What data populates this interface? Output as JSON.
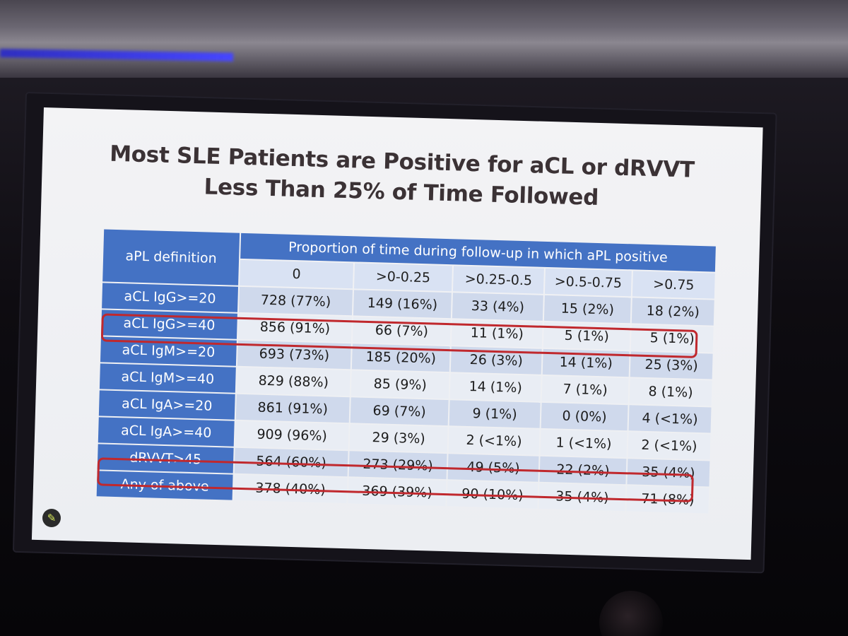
{
  "slide": {
    "title_line1": "Most SLE Patients are Positive for aCL or dRVVT",
    "title_line2": "Less Than 25% of Time Followed"
  },
  "table": {
    "row_header": "aPL definition",
    "group_header": "Proportion of time during follow-up in which aPL positive",
    "bins": [
      "0",
      ">0-0.25",
      ">0.25-0.5",
      ">0.5-0.75",
      ">0.75"
    ],
    "rows": [
      {
        "label": "aCL IgG>=20",
        "cells": [
          "728 (77%)",
          "149 (16%)",
          "33 (4%)",
          "15 (2%)",
          "18 (2%)"
        ]
      },
      {
        "label": "aCL IgG>=40",
        "cells": [
          "856 (91%)",
          "66 (7%)",
          "11 (1%)",
          "5 (1%)",
          "5 (1%)"
        ]
      },
      {
        "label": "aCL IgM>=20",
        "cells": [
          "693 (73%)",
          "185 (20%)",
          "26 (3%)",
          "14 (1%)",
          "25 (3%)"
        ]
      },
      {
        "label": "aCL IgM>=40",
        "cells": [
          "829 (88%)",
          "85 (9%)",
          "14 (1%)",
          "7 (1%)",
          "8 (1%)"
        ]
      },
      {
        "label": "aCL IgA>=20",
        "cells": [
          "861 (91%)",
          "69 (7%)",
          "9 (1%)",
          "0 (0%)",
          "4 (<1%)"
        ]
      },
      {
        "label": "aCL IgA>=40",
        "cells": [
          "909 (96%)",
          "29 (3%)",
          "2 (<1%)",
          "1 (<1%)",
          "2 (<1%)"
        ]
      },
      {
        "label": "dRVVT>45",
        "cells": [
          "564 (60%)",
          "273 (29%)",
          "49 (5%)",
          "22 (2%)",
          "35 (4%)"
        ]
      },
      {
        "label": "Any of above",
        "cells": [
          "378 (40%)",
          "369 (39%)",
          "90 (10%)",
          "35 (4%)",
          "71 (8%)"
        ]
      }
    ]
  },
  "colors": {
    "header_blue": "#4472c4",
    "highlight_red": "#c0282d"
  },
  "icons": {
    "pen": "pen-icon"
  }
}
